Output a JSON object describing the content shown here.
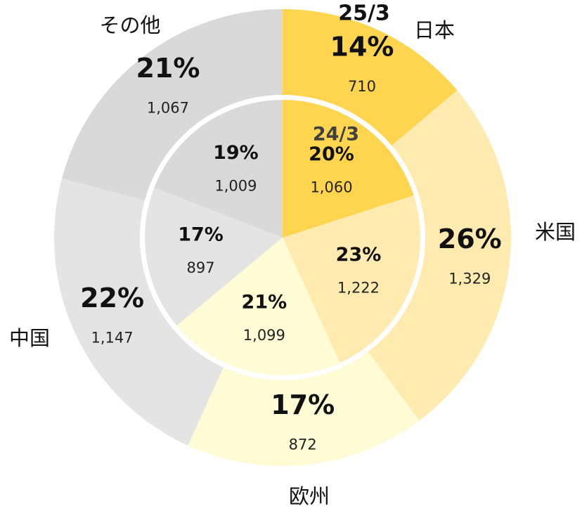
{
  "chart_data": {
    "type": "donut",
    "categories": [
      "日本",
      "米国",
      "欧州",
      "中国",
      "その他"
    ],
    "colors": [
      "#FFD54F",
      "#FFEBAF",
      "#FFFBD4",
      "#E4E4E4",
      "#D9D9D9"
    ],
    "series": [
      {
        "name": "25/3",
        "values": [
          710,
          1329,
          872,
          1147,
          1067
        ],
        "value_labels": [
          "710",
          "1,329",
          "872",
          "1,147",
          "1,067"
        ],
        "percents": [
          14,
          26,
          17,
          22,
          21
        ],
        "percent_labels": [
          "14%",
          "26%",
          "17%",
          "22%",
          "21%"
        ]
      },
      {
        "name": "24/3",
        "values": [
          1060,
          1222,
          1099,
          897,
          1009
        ],
        "value_labels": [
          "1,060",
          "1,222",
          "1,099",
          "897",
          "1,009"
        ],
        "percents": [
          20,
          23,
          21,
          17,
          19
        ],
        "percent_labels": [
          "20%",
          "23%",
          "21%",
          "17%",
          "19%"
        ]
      }
    ]
  }
}
